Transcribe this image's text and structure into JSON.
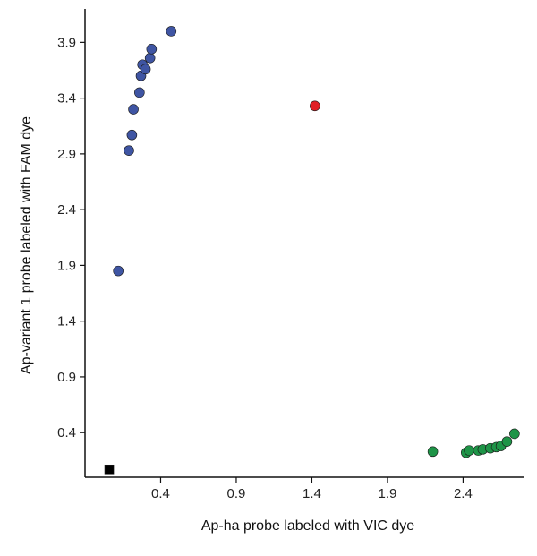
{
  "chart_data": {
    "type": "scatter",
    "title": "",
    "xlabel": "Ap-ha probe labeled with VIC dye",
    "ylabel": "Ap-variant 1 probe labeled with FAM dye",
    "xlim": [
      -0.1,
      2.8
    ],
    "ylim": [
      0.0,
      4.2
    ],
    "x_ticks": [
      0.4,
      0.9,
      1.4,
      1.9,
      2.4
    ],
    "y_ticks": [
      0.4,
      0.9,
      1.4,
      1.9,
      2.4,
      2.9,
      3.4,
      3.9
    ],
    "x_tick_labels": [
      "0.4",
      "0.9",
      "1.4",
      "1.9",
      "2.4"
    ],
    "y_tick_labels": [
      "0.4",
      "0.9",
      "1.4",
      "1.9",
      "2.4",
      "2.9",
      "3.4",
      "3.9"
    ],
    "grid": false,
    "legend": "none",
    "series": [
      {
        "color": "#3f55a3",
        "marker": "circle",
        "points": [
          {
            "x": 0.12,
            "y": 1.85
          },
          {
            "x": 0.19,
            "y": 2.93
          },
          {
            "x": 0.21,
            "y": 3.07
          },
          {
            "x": 0.22,
            "y": 3.3
          },
          {
            "x": 0.26,
            "y": 3.45
          },
          {
            "x": 0.27,
            "y": 3.6
          },
          {
            "x": 0.28,
            "y": 3.7
          },
          {
            "x": 0.3,
            "y": 3.66
          },
          {
            "x": 0.33,
            "y": 3.76
          },
          {
            "x": 0.34,
            "y": 3.84
          },
          {
            "x": 0.47,
            "y": 4.0
          }
        ]
      },
      {
        "color": "#e02026",
        "marker": "circle",
        "points": [
          {
            "x": 1.42,
            "y": 3.33
          }
        ]
      },
      {
        "color": "#1e9447",
        "marker": "circle",
        "points": [
          {
            "x": 2.2,
            "y": 0.23
          },
          {
            "x": 2.42,
            "y": 0.22
          },
          {
            "x": 2.44,
            "y": 0.24
          },
          {
            "x": 2.5,
            "y": 0.24
          },
          {
            "x": 2.53,
            "y": 0.25
          },
          {
            "x": 2.58,
            "y": 0.26
          },
          {
            "x": 2.62,
            "y": 0.27
          },
          {
            "x": 2.65,
            "y": 0.28
          },
          {
            "x": 2.69,
            "y": 0.32
          },
          {
            "x": 2.74,
            "y": 0.39
          }
        ]
      },
      {
        "color": "#000000",
        "marker": "square",
        "points": [
          {
            "x": 0.06,
            "y": 0.07
          }
        ]
      }
    ]
  }
}
